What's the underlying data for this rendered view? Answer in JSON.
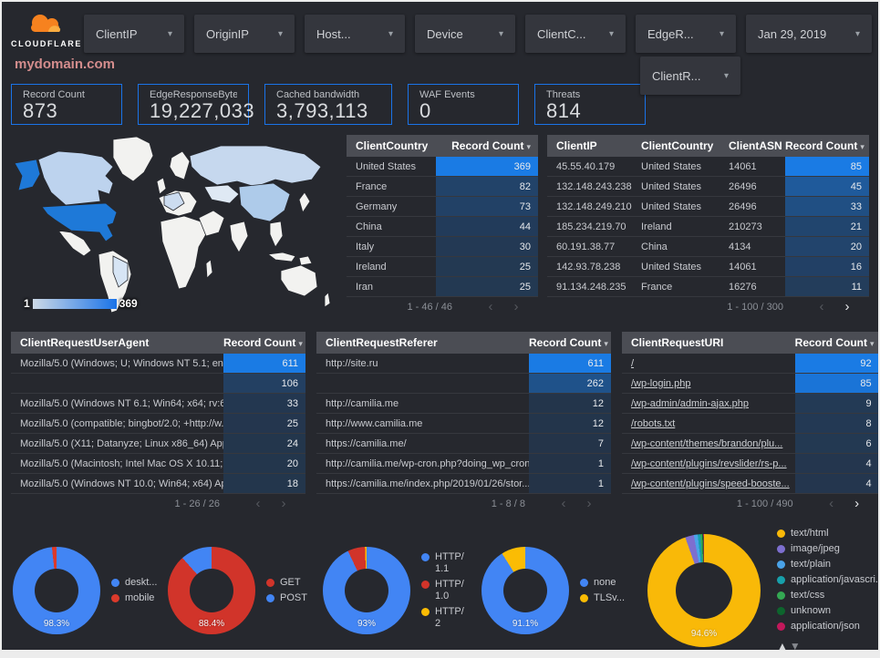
{
  "brand": {
    "name": "CLOUDFLARE"
  },
  "header": {
    "page_title": "mydomain.com",
    "filters": [
      {
        "label": "ClientIP"
      },
      {
        "label": "OriginIP"
      },
      {
        "label": "Host..."
      },
      {
        "label": "Device"
      },
      {
        "label": "ClientC..."
      },
      {
        "label": "EdgeR..."
      }
    ],
    "date_filter": {
      "label": "Jan 29, 2019"
    },
    "secondary_filter": {
      "label": "ClientR..."
    }
  },
  "scorecards": [
    {
      "label": "Record Count",
      "value": "873"
    },
    {
      "label": "EdgeResponseBytes",
      "value": "19,227,033"
    },
    {
      "label": "Cached bandwidth",
      "value": "3,793,113"
    },
    {
      "label": "WAF Events",
      "value": "0"
    },
    {
      "label": "Threats",
      "value": "814"
    }
  ],
  "map": {
    "legend_min": "1",
    "legend_max": "369"
  },
  "tables": {
    "client_country": {
      "headers": [
        "ClientCountry",
        "Record Count"
      ],
      "rows": [
        {
          "cells": [
            "United States"
          ],
          "count": 369
        },
        {
          "cells": [
            "France"
          ],
          "count": 82
        },
        {
          "cells": [
            "Germany"
          ],
          "count": 73
        },
        {
          "cells": [
            "China"
          ],
          "count": 44
        },
        {
          "cells": [
            "Italy"
          ],
          "count": 30
        },
        {
          "cells": [
            "Ireland"
          ],
          "count": 25
        },
        {
          "cells": [
            "Iran"
          ],
          "count": 25
        }
      ],
      "max_count": 369,
      "pagination": "1 - 46 / 46",
      "next_enabled": false
    },
    "client_ip": {
      "headers": [
        "ClientIP",
        "ClientCountry",
        "ClientASN",
        "Record Count"
      ],
      "rows": [
        {
          "cells": [
            "45.55.40.179",
            "United States",
            "14061"
          ],
          "count": 85
        },
        {
          "cells": [
            "132.148.243.238",
            "United States",
            "26496"
          ],
          "count": 45
        },
        {
          "cells": [
            "132.148.249.210",
            "United States",
            "26496"
          ],
          "count": 33
        },
        {
          "cells": [
            "185.234.219.70",
            "Ireland",
            "210273"
          ],
          "count": 21
        },
        {
          "cells": [
            "60.191.38.77",
            "China",
            "4134"
          ],
          "count": 20
        },
        {
          "cells": [
            "142.93.78.238",
            "United States",
            "14061"
          ],
          "count": 16
        },
        {
          "cells": [
            "91.134.248.235",
            "France",
            "16276"
          ],
          "count": 11
        }
      ],
      "max_count": 85,
      "pagination": "1 - 100 / 300",
      "next_enabled": true
    },
    "user_agent": {
      "headers": [
        "ClientRequestUserAgent",
        "Record Count"
      ],
      "rows": [
        {
          "cells": [
            "Mozilla/5.0 (Windows; U; Windows NT 5.1; en-U..."
          ],
          "count": 611
        },
        {
          "cells": [
            ""
          ],
          "count": 106
        },
        {
          "cells": [
            "Mozilla/5.0 (Windows NT 6.1; Win64; x64; rv:64..."
          ],
          "count": 33
        },
        {
          "cells": [
            "Mozilla/5.0 (compatible; bingbot/2.0; +http://w..."
          ],
          "count": 25
        },
        {
          "cells": [
            "Mozilla/5.0 (X11; Datanyze; Linux x86_64) Appl..."
          ],
          "count": 24
        },
        {
          "cells": [
            "Mozilla/5.0 (Macintosh; Intel Mac OS X 10.11; r..."
          ],
          "count": 20
        },
        {
          "cells": [
            "Mozilla/5.0 (Windows NT 10.0; Win64; x64) App..."
          ],
          "count": 18
        }
      ],
      "max_count": 611,
      "pagination": "1 - 26 / 26",
      "next_enabled": false
    },
    "referer": {
      "headers": [
        "ClientRequestReferer",
        "Record Count"
      ],
      "rows": [
        {
          "cells": [
            "http://site.ru"
          ],
          "count": 611
        },
        {
          "cells": [
            ""
          ],
          "count": 262
        },
        {
          "cells": [
            "http://camilia.me"
          ],
          "count": 12
        },
        {
          "cells": [
            "http://www.camilia.me"
          ],
          "count": 12
        },
        {
          "cells": [
            "https://camilia.me/"
          ],
          "count": 7
        },
        {
          "cells": [
            "http://camilia.me/wp-cron.php?doing_wp_cron..."
          ],
          "count": 1
        },
        {
          "cells": [
            "https://camilia.me/index.php/2019/01/26/stor..."
          ],
          "count": 1
        }
      ],
      "max_count": 611,
      "pagination": "1 - 8 / 8",
      "next_enabled": false
    },
    "uri": {
      "headers": [
        "ClientRequestURI",
        "Record Count"
      ],
      "rows": [
        {
          "cells": [
            "/"
          ],
          "count": 92
        },
        {
          "cells": [
            "/wp-login.php"
          ],
          "count": 85
        },
        {
          "cells": [
            "/wp-admin/admin-ajax.php"
          ],
          "count": 9
        },
        {
          "cells": [
            "/robots.txt"
          ],
          "count": 8
        },
        {
          "cells": [
            "/wp-content/themes/brandon/plu..."
          ],
          "count": 6
        },
        {
          "cells": [
            "/wp-content/plugins/revslider/rs-p..."
          ],
          "count": 4
        },
        {
          "cells": [
            "/wp-content/plugins/speed-booste..."
          ],
          "count": 4
        }
      ],
      "max_count": 92,
      "pagination": "1 - 100 / 490",
      "next_enabled": true
    }
  },
  "chart_data": [
    {
      "type": "choropleth",
      "legend_min": 1,
      "legend_max": 369,
      "note_visible_shading": "United States darkest blue (max); Canada, Russia, China medium blue; Brazil, western Europe pale blue; others near-white"
    },
    {
      "type": "pie",
      "labels": [
        "deskt...",
        "mobile"
      ],
      "values": [
        98.3,
        1.7
      ],
      "colors": [
        "#4285f4",
        "#db3a2b"
      ],
      "center_label": "98.3%",
      "legend_position": "right"
    },
    {
      "type": "pie",
      "labels": [
        "GET",
        "POST"
      ],
      "values": [
        88.4,
        11.6
      ],
      "colors": [
        "#d1342a",
        "#4285f4"
      ],
      "center_label": "88.4%",
      "legend_position": "right"
    },
    {
      "type": "pie",
      "labels": [
        "HTTP/1.1",
        "HTTP/1.0",
        "HTTP/2"
      ],
      "values": [
        93,
        6.4,
        0.6
      ],
      "colors": [
        "#4285f4",
        "#d1342a",
        "#fbbc04"
      ],
      "center_label": "93%",
      "legend_position": "right"
    },
    {
      "type": "pie",
      "labels": [
        "none",
        "TLSv..."
      ],
      "values": [
        91.1,
        8.9
      ],
      "colors": [
        "#4285f4",
        "#fbbc04"
      ],
      "center_label": "91.1%",
      "legend_position": "right"
    },
    {
      "type": "pie",
      "labels": [
        "text/html",
        "image/jpeg",
        "text/plain",
        "application/javascri...",
        "text/css",
        "unknown",
        "application/json"
      ],
      "values": [
        94.6,
        2.5,
        1.1,
        0.8,
        0.5,
        0.3,
        0.2
      ],
      "colors": [
        "#f9b908",
        "#7d6fcf",
        "#4aa3e8",
        "#17a0ab",
        "#34a853",
        "#0d652d",
        "#c2185b"
      ],
      "center_label": "94.6%",
      "legend_position": "right",
      "legend_scroll_arrows": true
    }
  ],
  "colors": {
    "accent_blue": "#1a73e8",
    "heatmap_blue": "#1a7be4",
    "title_pink": "#d48d8d",
    "map_max_blue": "#1e79d8",
    "logo_orange": "#f6821f",
    "logo_light_orange": "#fbad41"
  }
}
